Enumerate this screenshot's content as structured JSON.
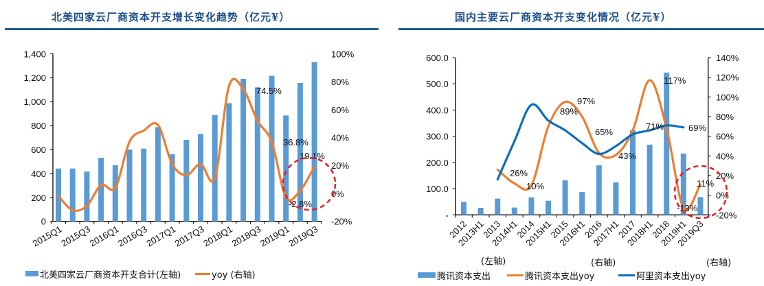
{
  "colors": {
    "bar": "#5b9bd5",
    "orange": "#ed7d31",
    "blue": "#0e6eb8",
    "title": "#1c4f8c",
    "highlight": "#e31e24"
  },
  "chart_data": [
    {
      "type": "bar+line",
      "title": "北美四家云厂商资本开支增长变化趋势（亿元¥）",
      "categories": [
        "2015Q1",
        "2015Q2",
        "2015Q3",
        "2015Q4",
        "2016Q1",
        "2016Q2",
        "2016Q3",
        "2016Q4",
        "2017Q1",
        "2017Q2",
        "2017Q3",
        "2017Q4",
        "2018Q1",
        "2018Q2",
        "2018Q3",
        "2018Q4",
        "2019Q1",
        "2019Q2",
        "2019Q3"
      ],
      "x_tick_labels": [
        "2015Q1",
        "2015Q3",
        "2016Q1",
        "2016Q3",
        "2017Q1",
        "2017Q3",
        "2018Q1",
        "2018Q3",
        "2019Q1",
        "2019Q3"
      ],
      "series": [
        {
          "name": "北美四家云厂商资本开支合计(左轴)",
          "type": "bar",
          "axis": "left",
          "values": [
            441,
            441,
            416,
            531,
            468,
            600,
            607,
            787,
            560,
            680,
            730,
            888,
            987,
            1190,
            1119,
            1216,
            884,
            1155,
            1331
          ]
        },
        {
          "name": "yoy (右轴)",
          "type": "line",
          "axis": "right",
          "values": [
            -2,
            -12,
            -9,
            6,
            4,
            37,
            45,
            49,
            21,
            13,
            21,
            11,
            77,
            74.5,
            52,
            36.8,
            -2.8,
            2,
            19.1
          ]
        }
      ],
      "y_left": {
        "range": [
          0,
          1400
        ],
        "ticks": [
          "0",
          "200",
          "400",
          "600",
          "800",
          "1,000",
          "1,200",
          "1,400"
        ]
      },
      "y_right": {
        "range": [
          -20,
          100
        ],
        "ticks": [
          "-20%",
          "0%",
          "20%",
          "40%",
          "60%",
          "80%",
          "100%"
        ]
      },
      "annotations": [
        "74.5%",
        "36.8%",
        "19.1%",
        "-2.8%"
      ],
      "legend": "bottom"
    },
    {
      "type": "bar+line",
      "title": "国内主要云厂商资本开支变化情况（亿元¥）",
      "categories": [
        "2012",
        "2013H1",
        "2013",
        "2014H1",
        "2014",
        "2015H1",
        "2015",
        "2016H1",
        "2016",
        "2017H1",
        "2017",
        "2018H1",
        "2018",
        "2019H1",
        "2019Q3"
      ],
      "series": [
        {
          "name": "腾讯资本支出",
          "axis_note": "(左轴)",
          "type": "bar",
          "axis": "left",
          "values": [
            50,
            27,
            62,
            28,
            67,
            54,
            132,
            87,
            189,
            124,
            323,
            268,
            543,
            234,
            68
          ]
        },
        {
          "name": "腾讯资本支出yoy",
          "axis_note": "(右轴)",
          "type": "line",
          "axis": "right",
          "values": [
            null,
            null,
            26,
            12,
            10,
            70,
            95,
            80,
            43,
            41,
            66,
            117,
            68,
            -13,
            11
          ]
        },
        {
          "name": "阿里资本支出yoy",
          "axis_note": "(右轴)",
          "type": "line",
          "axis": "right",
          "values": [
            null,
            null,
            16,
            55,
            92,
            76,
            66,
            53,
            42,
            50,
            62,
            66,
            71,
            69,
            null
          ]
        }
      ],
      "y_left": {
        "range": [
          0,
          600
        ],
        "ticks": [
          "-",
          "100.0",
          "200.0",
          "300.0",
          "400.0",
          "500.0",
          "600.0"
        ]
      },
      "y_right": {
        "range": [
          -20,
          140
        ],
        "ticks": [
          "-20%",
          "0%",
          "20%",
          "40%",
          "60%",
          "80%",
          "100%",
          "120%",
          "140%"
        ]
      },
      "annotations": [
        "26%",
        "10%",
        "89%",
        "97%",
        "65%",
        "43%",
        "71%",
        "69%",
        "117%",
        "11%",
        "-13%"
      ],
      "legend": "bottom"
    }
  ]
}
